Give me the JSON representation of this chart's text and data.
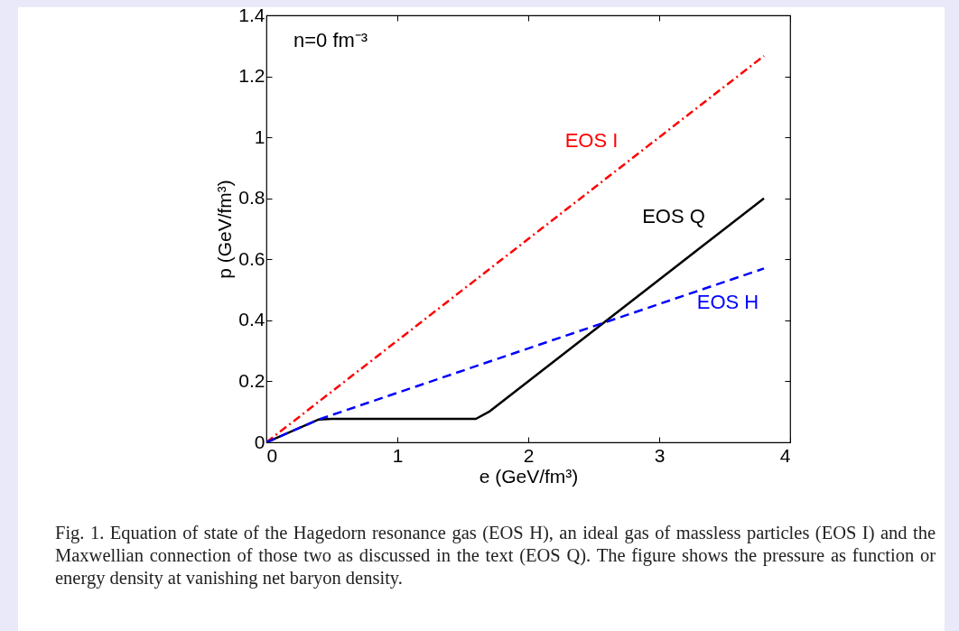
{
  "chart_data": {
    "type": "line",
    "xlabel": "e (GeV/fm³)",
    "ylabel": "p (GeV/fm³)",
    "xlim": [
      0,
      4
    ],
    "xticks": [
      0,
      1,
      2,
      3,
      4
    ],
    "ylim": [
      0,
      1.4
    ],
    "yticks": [
      0,
      0.2,
      0.4,
      0.6,
      0.8,
      1,
      1.2,
      1.4
    ],
    "grid": false,
    "marker": "none",
    "series": [
      {
        "name": "EOS I",
        "color": "#ff0000",
        "line_style": "dashdot",
        "x": [
          0,
          3.8
        ],
        "values": [
          0,
          1.267
        ]
      },
      {
        "name": "EOS Q",
        "color": "#000000",
        "line_style": "solid",
        "x": [
          0,
          0.4,
          0.5,
          1.6,
          1.7,
          3.8
        ],
        "values": [
          0,
          0.075,
          0.077,
          0.077,
          0.1,
          0.8
        ]
      },
      {
        "name": "EOS H",
        "color": "#0000ff",
        "line_style": "dashed",
        "x": [
          0,
          0.4,
          3.8
        ],
        "values": [
          0,
          0.075,
          0.57
        ]
      }
    ],
    "annotations": [
      "n=0 fm⁻³",
      "Fig. 1.   Equation of state of the Hagedorn resonance gas (EOS H), an ideal gas of massless particles (EOS I) and the Maxwellian connection of those two as discussed in the text (EOS Q). The figure shows the pressure as function or energy density at vanishing net baryon density."
    ]
  }
}
